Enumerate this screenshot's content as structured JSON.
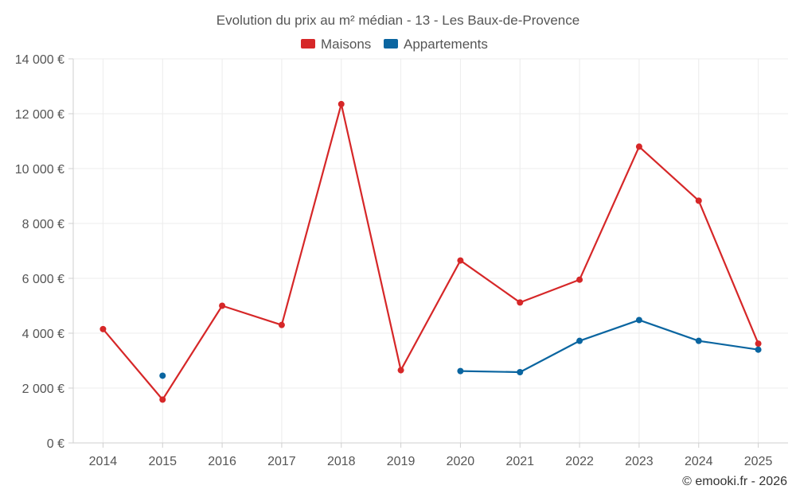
{
  "chart_data": {
    "type": "line",
    "title": "Evolution du prix au m² médian - 13 - Les Baux-de-Provence",
    "categories": [
      "2014",
      "2015",
      "2016",
      "2017",
      "2018",
      "2019",
      "2020",
      "2021",
      "2022",
      "2023",
      "2024",
      "2025"
    ],
    "ylim": [
      0,
      14000
    ],
    "yticks": [
      0,
      2000,
      4000,
      6000,
      8000,
      10000,
      12000,
      14000
    ],
    "ytick_labels": [
      "0 €",
      "2 000 €",
      "4 000 €",
      "6 000 €",
      "8 000 €",
      "10 000 €",
      "12 000 €",
      "14 000 €"
    ],
    "grid": true,
    "legend_position": "top-center",
    "series": [
      {
        "name": "Maisons",
        "color": "#d62728",
        "values": [
          4150,
          1580,
          5000,
          4300,
          12350,
          2650,
          6650,
          5120,
          5950,
          10800,
          8830,
          3620
        ]
      },
      {
        "name": "Appartements",
        "color": "#0a65a0",
        "values": [
          null,
          2450,
          null,
          null,
          null,
          null,
          2620,
          2580,
          3720,
          4480,
          3720,
          3400
        ]
      }
    ],
    "credit": "© emooki.fr - 2026"
  }
}
